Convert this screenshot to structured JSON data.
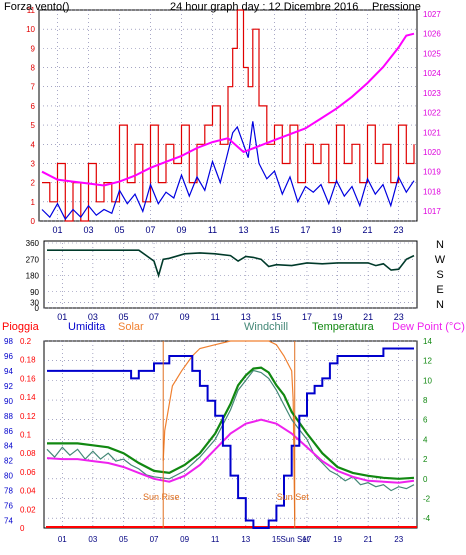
{
  "colors": {
    "wind_gust": "#e00000",
    "wind_speed": "#0000e0",
    "pressure": "#ff00ff",
    "direction": "#003a2a",
    "rain": "#ff0000",
    "humidity": "#0000cc",
    "solar": "#f08030",
    "windchill": "#448877",
    "temperature": "#118811",
    "dewpoint": "#ee22ee",
    "grid": "#7070a0",
    "sun_marker": "#e07020"
  },
  "chart_data": [
    {
      "id": "wind_pressure",
      "type": "line",
      "labels": {
        "left": "Forza vento()",
        "title": "24 hour graph day : 12 Dicembre 2016",
        "right": "Pressione"
      },
      "x_ticks": [
        "01",
        "03",
        "05",
        "07",
        "09",
        "11",
        "13",
        "15",
        "17",
        "19",
        "21",
        "23"
      ],
      "y_left": {
        "min": 0,
        "max": 11,
        "ticks": [
          "0",
          "1",
          "2",
          "3",
          "4",
          "5",
          "6",
          "7",
          "8",
          "9",
          "10",
          "11"
        ]
      },
      "y_right": {
        "min": 1016.5,
        "max": 1027.2,
        "ticks": [
          "1017",
          "1018",
          "1019",
          "1020",
          "1021",
          "1022",
          "1023",
          "1024",
          "1025",
          "1026",
          "1027"
        ]
      },
      "series": [
        {
          "key": "gust",
          "axis": "left",
          "step": true,
          "x": [
            0,
            0.5,
            1,
            1.5,
            2,
            2.5,
            3,
            3.5,
            4,
            4.5,
            5,
            5.5,
            6,
            6.5,
            7,
            7.5,
            8,
            8.5,
            9,
            9.5,
            10,
            10.5,
            11,
            11.5,
            12,
            12.3,
            12.6,
            13,
            13.3,
            13.6,
            14,
            14.5,
            15,
            15.5,
            16,
            16.5,
            17,
            17.5,
            18,
            18.5,
            19,
            19.5,
            20,
            20.5,
            21,
            21.5,
            22,
            22.5,
            23,
            23.5,
            24
          ],
          "y": [
            2,
            1,
            3,
            0,
            2,
            0,
            3,
            1,
            2,
            1,
            5,
            2,
            4,
            1,
            5,
            2,
            4,
            3,
            5,
            2,
            4,
            5,
            6,
            4,
            7,
            9,
            11,
            8,
            7,
            10,
            6,
            4,
            5,
            3,
            5,
            2,
            4,
            3,
            4,
            2,
            5,
            3,
            4,
            2,
            5,
            3,
            4,
            2,
            5,
            3,
            4
          ]
        },
        {
          "key": "speed",
          "axis": "left",
          "x": [
            0,
            0.5,
            1,
            1.5,
            2,
            2.5,
            3,
            3.5,
            4,
            4.5,
            5,
            5.5,
            6,
            6.5,
            7,
            7.5,
            8,
            8.5,
            9,
            9.5,
            10,
            10.5,
            11,
            11.5,
            12,
            12.3,
            12.6,
            13,
            13.3,
            13.6,
            14,
            14.5,
            15,
            15.5,
            16,
            16.5,
            17,
            17.5,
            18,
            18.5,
            19,
            19.5,
            20,
            20.5,
            21,
            21.5,
            22,
            22.5,
            23,
            23.5,
            24
          ],
          "y": [
            0.6,
            0.2,
            0.9,
            0.1,
            0.6,
            0.2,
            0.8,
            0.3,
            0.6,
            0.4,
            1.6,
            0.9,
            1.4,
            0.5,
            1.9,
            0.9,
            1.5,
            1.2,
            2.4,
            1.3,
            2.3,
            1.6,
            3.1,
            2.0,
            3.6,
            4.6,
            4.9,
            4.0,
            3.3,
            5.2,
            3.0,
            2.2,
            2.6,
            1.4,
            2.3,
            1.0,
            1.8,
            1.5,
            1.9,
            0.9,
            2.1,
            1.3,
            1.8,
            0.8,
            2.2,
            1.4,
            1.9,
            0.8,
            2.3,
            1.5,
            2.1
          ]
        },
        {
          "key": "pressure",
          "axis": "right",
          "x": [
            0,
            1,
            2,
            3,
            4,
            5,
            6,
            7,
            8,
            9,
            10,
            11,
            12,
            13,
            14,
            15,
            16,
            17,
            18,
            19,
            20,
            21,
            22,
            23,
            23.5,
            24
          ],
          "y": [
            1019.0,
            1018.6,
            1018.5,
            1018.4,
            1018.3,
            1018.5,
            1018.8,
            1019.2,
            1019.5,
            1019.8,
            1020.2,
            1020.5,
            1020.7,
            1020.0,
            1020.3,
            1020.6,
            1020.9,
            1021.2,
            1021.7,
            1022.2,
            1022.8,
            1023.5,
            1024.3,
            1025.3,
            1025.9,
            1026.0
          ]
        }
      ]
    },
    {
      "id": "direction",
      "type": "line",
      "x_ticks": [
        "01",
        "03",
        "05",
        "07",
        "09",
        "11",
        "13",
        "15",
        "17",
        "19",
        "21",
        "23"
      ],
      "y": {
        "min": 0,
        "max": 360,
        "ticks": [
          "0",
          "30",
          "90",
          "180",
          "270",
          "360"
        ]
      },
      "compass": [
        "N",
        "W",
        "S",
        "E",
        "N"
      ],
      "series": [
        {
          "key": "dir",
          "x": [
            0,
            1,
            2,
            3,
            4,
            5,
            6,
            6.5,
            7,
            7.3,
            7.6,
            8,
            9,
            10,
            11,
            12,
            12.5,
            13,
            13.5,
            14,
            14.5,
            15,
            16,
            17,
            18,
            19,
            20,
            21,
            21.5,
            22,
            22.5,
            23,
            23.5,
            24
          ],
          "y": [
            320,
            320,
            320,
            320,
            320,
            320,
            320,
            290,
            260,
            180,
            270,
            275,
            300,
            305,
            300,
            290,
            260,
            285,
            280,
            270,
            230,
            240,
            235,
            250,
            245,
            250,
            250,
            250,
            235,
            245,
            210,
            215,
            270,
            290
          ]
        }
      ]
    },
    {
      "id": "rain_humidity_temp",
      "type": "line",
      "legend": [
        "Pioggia",
        "Umidita",
        "Solar",
        "Windchill",
        "Temperatura",
        "Dew Point (°C)"
      ],
      "x_ticks": [
        "01",
        "03",
        "05",
        "07",
        "09",
        "11",
        "13",
        "15",
        "Sun Set",
        "17",
        "19",
        "21",
        "23"
      ],
      "y_humidity": {
        "min": 73,
        "max": 98,
        "ticks": [
          "74",
          "76",
          "78",
          "80",
          "82",
          "84",
          "86",
          "88",
          "90",
          "92",
          "94",
          "96",
          "98"
        ]
      },
      "y_rain": {
        "min": 0,
        "max": 0.2,
        "ticks": [
          "0",
          "0.02",
          "0.04",
          "0.06",
          "0.08",
          "0.1",
          "0.12",
          "0.14",
          "0.16",
          "0.18",
          "0.2"
        ]
      },
      "y_temp": {
        "min": -5,
        "max": 14,
        "ticks": [
          "-4",
          "-2",
          "0",
          "2",
          "4",
          "6",
          "8",
          "10",
          "12",
          "14"
        ]
      },
      "annotations": {
        "sun_rise": "Sun Rise",
        "sun_set": "Sun Set",
        "sun_rise_hour": 7.6,
        "sun_set_hour": 16.2
      },
      "series": [
        {
          "key": "humidity",
          "axis": "humidity",
          "step": true,
          "x": [
            0,
            2,
            4,
            5.5,
            6,
            7,
            8,
            9,
            9.5,
            10,
            10.5,
            11,
            11.5,
            12,
            12.5,
            13,
            13.5,
            14,
            14.5,
            15,
            15.5,
            16,
            16.5,
            17,
            17.5,
            18,
            18.5,
            19,
            20,
            21,
            22,
            22.5,
            23,
            24
          ],
          "y": [
            94,
            94,
            94,
            93,
            94,
            95,
            96,
            96,
            94,
            92,
            90,
            88,
            84,
            80,
            77,
            74,
            73,
            73,
            74,
            76,
            80,
            84,
            88,
            91,
            92,
            93,
            95,
            96,
            96,
            96,
            97,
            97,
            97,
            97
          ]
        },
        {
          "key": "solar",
          "axis": "humidity",
          "x": [
            7.6,
            7.7,
            8.2,
            8.8,
            9.5,
            10,
            11,
            12,
            13,
            14,
            14.5,
            15,
            15.5,
            16,
            16.1,
            16.2
          ],
          "y": [
            82,
            86,
            92,
            94,
            96,
            97,
            97.5,
            98,
            98,
            98,
            98,
            97.5,
            96,
            94,
            90,
            74
          ]
        },
        {
          "key": "temperature",
          "axis": "temp",
          "x": [
            0,
            1,
            2,
            3,
            4,
            5,
            6,
            7,
            8,
            9,
            10,
            11,
            12,
            12.5,
            13,
            13.5,
            14,
            14.5,
            15,
            15.5,
            16,
            17,
            18,
            19,
            20,
            21,
            22,
            23,
            24
          ],
          "y": [
            3.6,
            3.6,
            3.6,
            3.4,
            3.2,
            2.6,
            1.6,
            0.8,
            0.6,
            1.4,
            2.6,
            4.6,
            7.6,
            9.5,
            10.5,
            11.2,
            11.3,
            10.8,
            9.5,
            8.5,
            6.8,
            4.6,
            2.6,
            1.2,
            0.6,
            0.3,
            0.1,
            0.0,
            0.1
          ]
        },
        {
          "key": "windchill",
          "axis": "temp",
          "x": [
            0,
            0.5,
            1,
            1.5,
            2,
            2.5,
            3,
            3.5,
            4,
            4.5,
            5,
            5.5,
            6,
            6.5,
            7,
            8,
            9,
            10,
            11,
            12,
            12.5,
            13,
            13.5,
            14,
            14.5,
            15,
            15.5,
            16,
            16.5,
            17,
            17.5,
            18,
            18.5,
            19,
            19.5,
            20,
            20.5,
            21,
            21.5,
            22,
            22.5,
            23,
            23.5,
            24
          ],
          "y": [
            3.0,
            2.2,
            3.2,
            2.4,
            3.0,
            2.0,
            2.8,
            2.0,
            2.6,
            1.8,
            2.0,
            1.4,
            1.0,
            0.4,
            0.2,
            0.0,
            0.8,
            2.2,
            4.0,
            7.0,
            9.0,
            10.0,
            11.0,
            10.8,
            10.2,
            9.0,
            7.5,
            6.0,
            5.0,
            4.0,
            2.4,
            1.6,
            0.8,
            0.4,
            -0.2,
            0.2,
            -0.6,
            -0.4,
            -0.8,
            -0.6,
            -1.2,
            -0.8,
            -1.0,
            -0.6
          ]
        },
        {
          "key": "dewpoint",
          "axis": "temp",
          "x": [
            0,
            1,
            2,
            3,
            4,
            5,
            6,
            7,
            8,
            9,
            10,
            11,
            12,
            13,
            14,
            15,
            16,
            17,
            18,
            19,
            20,
            21,
            22,
            23,
            24
          ],
          "y": [
            2.1,
            2.0,
            2.0,
            1.8,
            1.6,
            1.2,
            0.6,
            0.0,
            -0.3,
            0.3,
            1.4,
            3.0,
            4.6,
            5.6,
            6.0,
            5.6,
            4.6,
            3.2,
            1.8,
            0.8,
            0.2,
            -0.2,
            -0.3,
            -0.4,
            -0.2
          ]
        }
      ]
    }
  ]
}
